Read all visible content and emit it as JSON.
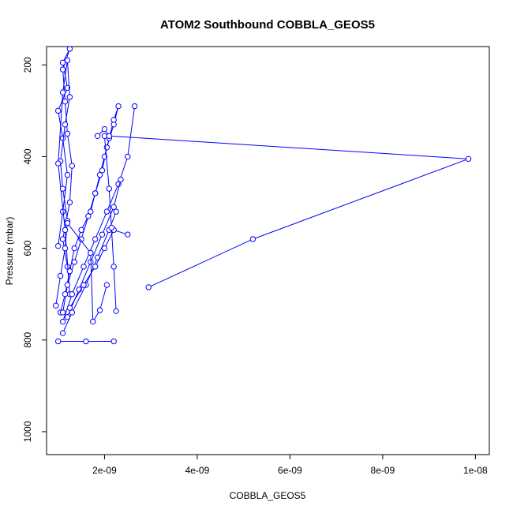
{
  "chart_data": {
    "type": "line",
    "title": "ATOM2 Southbound COBBLA_GEOS5",
    "xlabel": "COBBLA_GEOS5",
    "ylabel": "Pressure (mbar)",
    "xlim": [
      7.5e-10,
      1.03e-08
    ],
    "ylim": [
      1050,
      160
    ],
    "y_inverted": true,
    "x_ticks": [
      {
        "value": 2e-09,
        "label": "2e-09"
      },
      {
        "value": 4e-09,
        "label": "4e-09"
      },
      {
        "value": 6e-09,
        "label": "6e-09"
      },
      {
        "value": 8e-09,
        "label": "8e-09"
      },
      {
        "value": 1e-08,
        "label": "1e-08"
      }
    ],
    "y_ticks": [
      {
        "value": 200,
        "label": "200"
      },
      {
        "value": 400,
        "label": "400"
      },
      {
        "value": 600,
        "label": "600"
      },
      {
        "value": 800,
        "label": "800"
      },
      {
        "value": 1000,
        "label": "1000"
      }
    ],
    "series_color": "#0000ff",
    "grid": false,
    "series": [
      {
        "x": [
          1e-09,
          1.1e-09,
          1.2e-09,
          1.1e-09,
          1e-09,
          1.2e-09,
          1.1e-09,
          1.25e-09,
          1.1e-09,
          1.15e-09,
          1.2e-09,
          1.3e-09,
          1.25e-09,
          1.1e-09,
          1.2e-09
        ],
        "y": [
          595,
          520,
          440,
          360,
          300,
          250,
          195,
          165,
          210,
          280,
          350,
          420,
          500,
          580,
          640
        ]
      },
      {
        "x": [
          9.5e-10,
          1.05e-09,
          1.15e-09,
          1.2e-09,
          1.1e-09,
          1.05e-09,
          1.15e-09,
          1.25e-09,
          1.2e-09,
          1.1e-09,
          1e-09,
          1.15e-09,
          1.25e-09
        ],
        "y": [
          725,
          660,
          600,
          540,
          470,
          410,
          330,
          270,
          190,
          260,
          415,
          560,
          700
        ]
      },
      {
        "x": [
          1.05e-09,
          1.15e-09,
          1.25e-09,
          1.35e-09,
          1.5e-09,
          1.7e-09,
          1.8e-09,
          1.9e-09,
          2e-09,
          2.1e-09,
          2.2e-09,
          2.3e-09,
          2.2e-09,
          2.05e-09,
          1.95e-09,
          1.8e-09,
          1.65e-09,
          1.5e-09,
          1.35e-09,
          1.2e-09,
          1.1e-09
        ],
        "y": [
          740,
          700,
          650,
          600,
          560,
          520,
          480,
          440,
          400,
          360,
          320,
          290,
          330,
          380,
          430,
          480,
          530,
          580,
          630,
          680,
          740
        ]
      },
      {
        "x": [
          1.1e-09,
          1.3e-09,
          1.55e-09,
          1.8e-09,
          2.05e-09,
          2.3e-09,
          2.5e-09,
          2.65e-09
        ],
        "y": [
          760,
          700,
          640,
          580,
          520,
          460,
          400,
          290
        ]
      },
      {
        "x": [
          1.2e-09,
          1.45e-09,
          1.7e-09,
          1.95e-09,
          2.2e-09,
          2.35e-09
        ],
        "y": [
          750,
          690,
          630,
          570,
          510,
          450
        ]
      },
      {
        "x": [
          1.1e-09,
          1.3e-09,
          1.6e-09,
          1.85e-09,
          2.1e-09,
          2.25e-09
        ],
        "y": [
          785,
          740,
          680,
          620,
          560,
          520
        ]
      },
      {
        "x": [
          1.25e-09,
          1.55e-09,
          1.8e-09,
          2e-09,
          2.2e-09,
          2.5e-09
        ],
        "y": [
          730,
          680,
          640,
          600,
          560,
          570
        ]
      },
      {
        "x": [
          1e-09,
          1.6e-09,
          2.2e-09
        ],
        "y": [
          803,
          803,
          803
        ]
      },
      {
        "x": [
          2.25e-09,
          2.2e-09,
          2.15e-09,
          2.1e-09,
          2e-09
        ],
        "y": [
          737,
          640,
          555,
          470,
          355
        ]
      },
      {
        "x": [
          1.2e-09,
          1.7e-09,
          1.75e-09,
          1.9e-09,
          2.05e-09
        ],
        "y": [
          545,
          610,
          760,
          735,
          680
        ]
      },
      {
        "x": [
          1.85e-09,
          2e-09,
          2.1e-09,
          9.85e-09,
          5.2e-09,
          2.95e-09
        ],
        "y": [
          355,
          340,
          355,
          405,
          580,
          685
        ]
      }
    ]
  }
}
